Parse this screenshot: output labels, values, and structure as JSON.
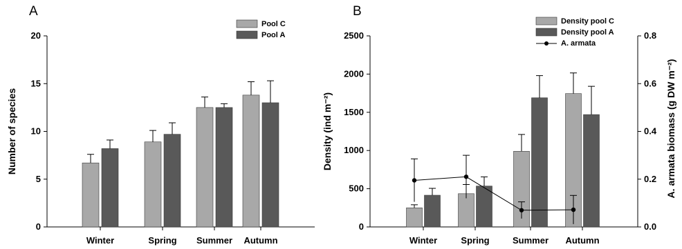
{
  "panels": {
    "a_label": "A",
    "b_label": "B"
  },
  "colors": {
    "light": "#a8a8a8",
    "dark": "#595959",
    "line": "#000000"
  },
  "chart_data": [
    {
      "type": "bar",
      "categories": [
        "Winter",
        "Spring",
        "Summer",
        "Autumn"
      ],
      "ylabel": "Number of species",
      "ylim": [
        0,
        20
      ],
      "yticks": [
        "0",
        "5",
        "10",
        "15",
        "20"
      ],
      "series": [
        {
          "name": "Pool C",
          "values": [
            6.7,
            8.9,
            12.5,
            13.8
          ],
          "errors": [
            0.9,
            1.2,
            1.1,
            1.4
          ]
        },
        {
          "name": "Pool A",
          "values": [
            8.2,
            9.7,
            12.5,
            13.0
          ],
          "errors": [
            0.9,
            1.2,
            0.4,
            2.3
          ]
        }
      ]
    },
    {
      "type": "bar",
      "categories": [
        "Winter",
        "Spring",
        "Summer",
        "Autumn"
      ],
      "ylabel": "Density (ind m⁻²)",
      "ylim": [
        0,
        2500
      ],
      "yticks": [
        "0",
        "500",
        "1000",
        "1500",
        "2000",
        "2500"
      ],
      "y2label": "A. armata biomass (g DW m⁻²)",
      "y2lim": [
        0,
        0.8
      ],
      "y2ticks": [
        "0.0",
        "0.2",
        "0.4",
        "0.6",
        "0.8"
      ],
      "series": [
        {
          "name": "Density pool C",
          "values": [
            250,
            435,
            990,
            1745
          ],
          "errors": [
            40,
            120,
            220,
            270
          ]
        },
        {
          "name": "Density pool A",
          "values": [
            415,
            535,
            1690,
            1470
          ],
          "errors": [
            90,
            120,
            290,
            370
          ]
        },
        {
          "name": "A. armata",
          "axis": "right",
          "values": [
            0.195,
            0.21,
            0.07,
            0.072
          ],
          "errors": [
            0.09,
            0.09,
            0.035,
            0.06
          ]
        }
      ]
    }
  ]
}
